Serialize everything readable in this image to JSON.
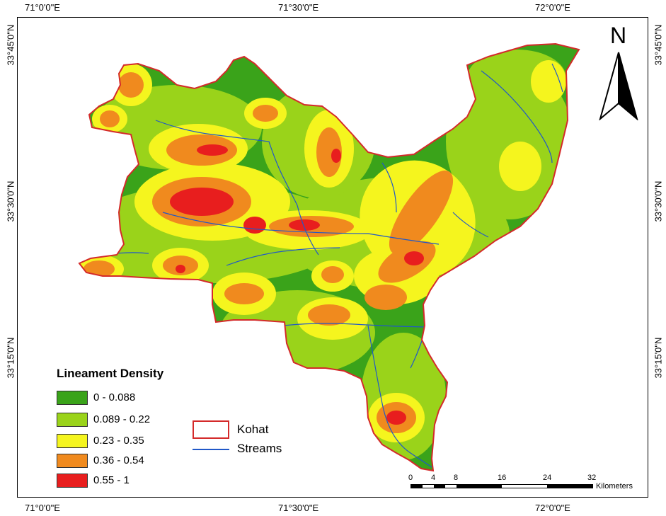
{
  "coordinates": {
    "top": [
      "71°0'0\"E",
      "71°30'0\"E",
      "72°0'0\"E"
    ],
    "bottom": [
      "71°0'0\"E",
      "71°30'0\"E",
      "72°0'0\"E"
    ],
    "left": [
      "33°45'0\"N",
      "33°30'0\"N",
      "33°15'0\"N"
    ],
    "right": [
      "33°45'0\"N",
      "33°30'0\"N",
      "33°15'0\"N"
    ]
  },
  "legend": {
    "title": "Lineament Density",
    "classes": [
      {
        "label": "0 - 0.088",
        "color": "#3aa31a"
      },
      {
        "label": "0.089 - 0.22",
        "color": "#9ad31a"
      },
      {
        "label": "0.23 - 0.35",
        "color": "#f5f51e"
      },
      {
        "label": "0.36 - 0.54",
        "color": "#f08a1e"
      },
      {
        "label": "0.55 - 1",
        "color": "#e81e1e"
      }
    ],
    "kohat_label": "Kohat",
    "kohat_color": "#d42a2a",
    "streams_label": "Streams",
    "streams_color": "#2058c8"
  },
  "north_arrow": {
    "letter": "N"
  },
  "scale_bar": {
    "ticks": [
      "0",
      "4",
      "8",
      "16",
      "24",
      "32"
    ],
    "unit": "Kilometers"
  }
}
